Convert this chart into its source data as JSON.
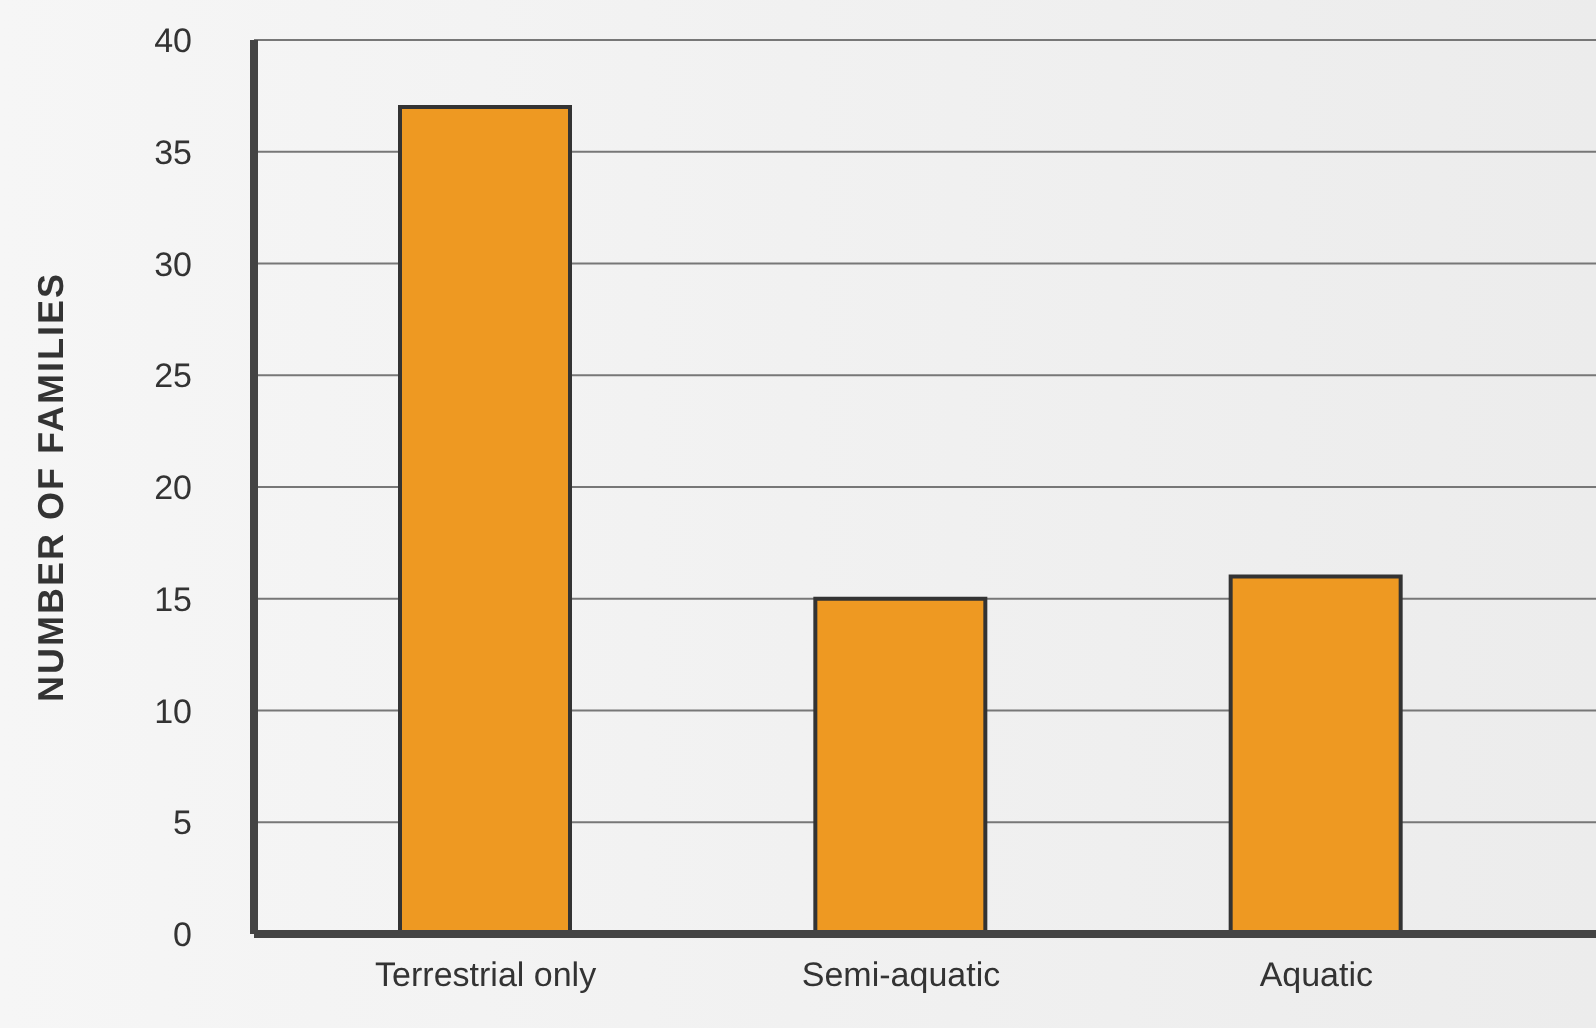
{
  "chart_data": {
    "type": "bar",
    "ylabel": "NUMBER OF FAMILIES",
    "categories": [
      "Terrestrial only",
      "Semi-aquatic",
      "Aquatic"
    ],
    "values": [
      37,
      15,
      16
    ],
    "color": "#ee9922",
    "ylim": [
      0,
      40
    ],
    "yticks": [
      0,
      5,
      10,
      15,
      20,
      25,
      30,
      35,
      40
    ],
    "grid": "y"
  }
}
